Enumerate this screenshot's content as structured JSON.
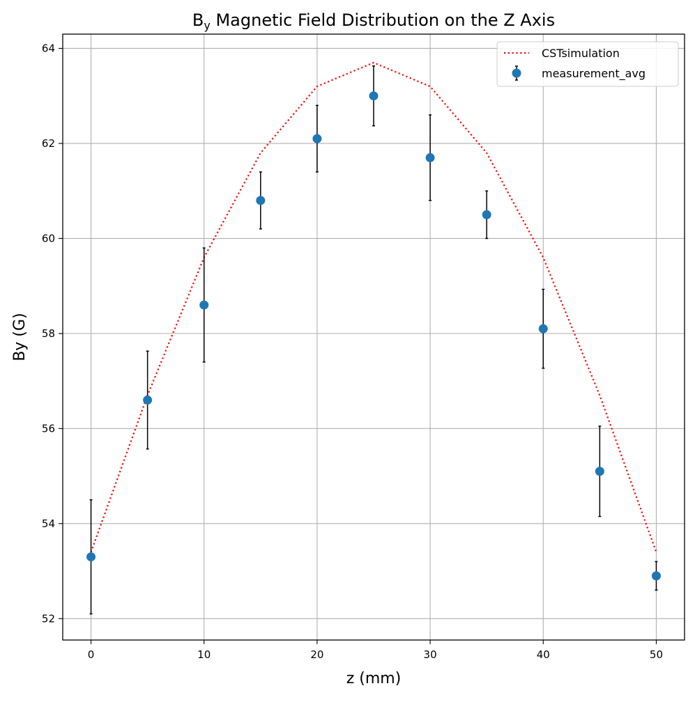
{
  "chart_data": {
    "type": "scatter",
    "title": {
      "prefix": "B",
      "subscript": "y",
      "rest": " Magnetic Field Distribution on the Z Axis"
    },
    "xlabel": "z (mm)",
    "ylabel": "By (G)",
    "xlim": [
      -2.5,
      52.5
    ],
    "ylim": [
      51.55,
      64.3
    ],
    "xticks": [
      0,
      10,
      20,
      30,
      40,
      50
    ],
    "yticks": [
      52,
      54,
      56,
      58,
      60,
      62,
      64
    ],
    "grid": true,
    "legend_position": "top-right",
    "series": [
      {
        "name": "CSTsimulation",
        "kind": "line",
        "style": "dotted",
        "color": "#ff0000",
        "x": [
          0,
          5,
          10,
          15,
          20,
          25,
          30,
          35,
          40,
          45,
          50
        ],
        "y": [
          53.4,
          56.7,
          59.6,
          61.8,
          63.2,
          63.7,
          63.2,
          61.8,
          59.6,
          56.7,
          53.4
        ]
      },
      {
        "name": "measurement_avg",
        "kind": "errorbar",
        "color": "#1f77b4",
        "error_color": "#000000",
        "x": [
          0,
          5,
          10,
          15,
          20,
          25,
          30,
          35,
          40,
          45,
          50
        ],
        "y": [
          53.3,
          56.6,
          58.6,
          60.8,
          62.1,
          63.0,
          61.7,
          60.5,
          58.1,
          55.1,
          52.9
        ],
        "yerr": [
          1.2,
          1.03,
          1.2,
          0.6,
          0.7,
          0.63,
          0.9,
          0.5,
          0.83,
          0.95,
          0.3
        ]
      }
    ]
  }
}
